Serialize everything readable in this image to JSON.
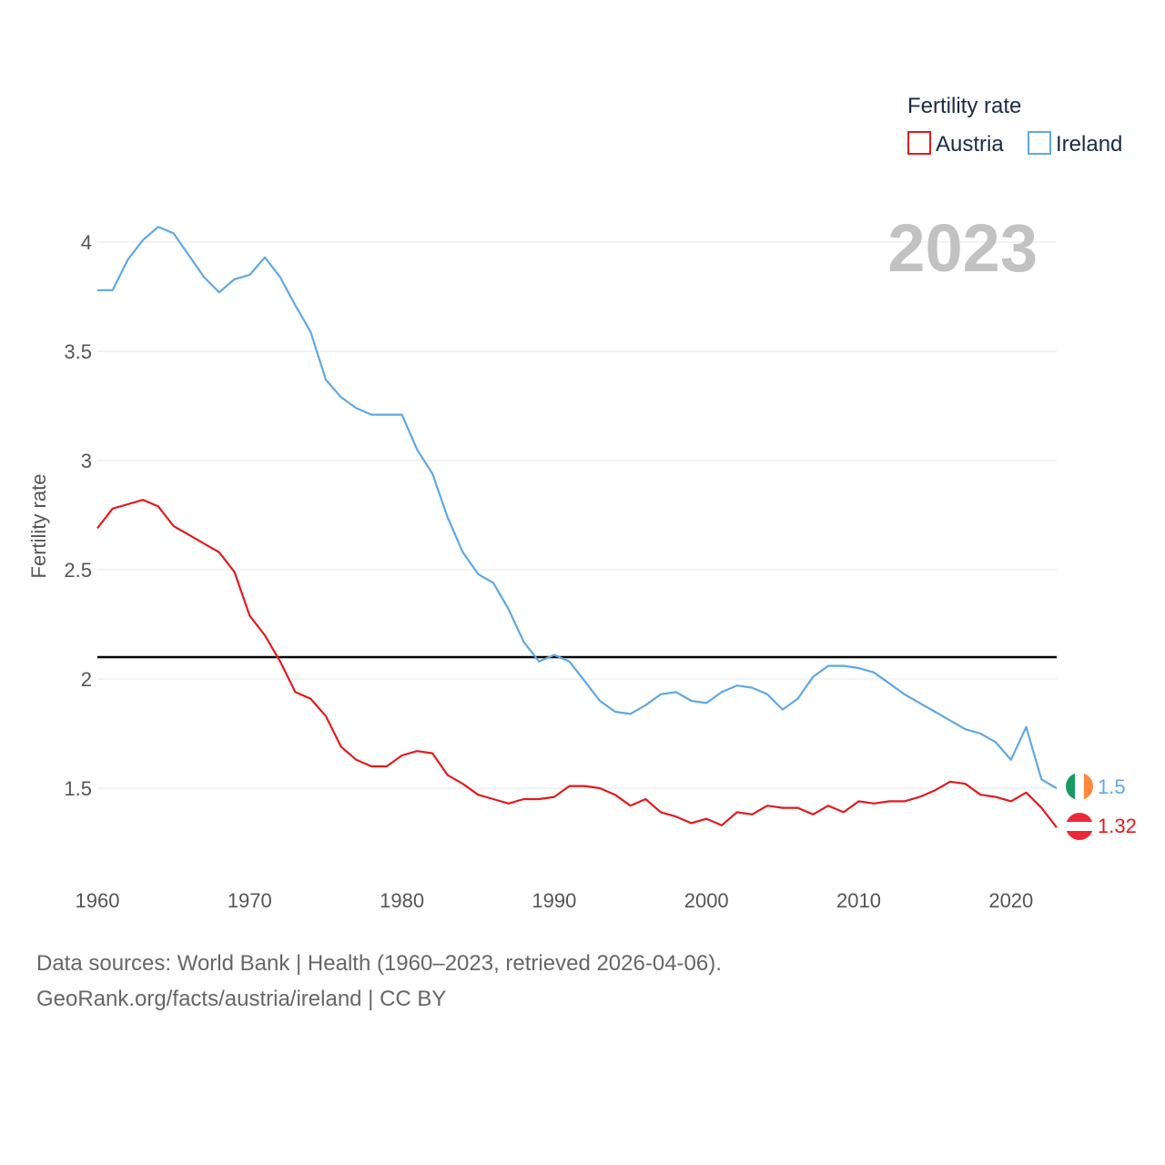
{
  "chart_data": {
    "type": "line",
    "title": "",
    "highlight_year": "2023",
    "ylabel": "Fertility rate",
    "xlabel": "",
    "xlim": [
      1960,
      2023
    ],
    "ylim": [
      1.15,
      4.2
    ],
    "x_ticks": [
      1960,
      1970,
      1980,
      1990,
      2000,
      2010,
      2020
    ],
    "y_ticks": [
      {
        "value": 1.5,
        "label": "1.5"
      },
      {
        "value": 2,
        "label": "2"
      },
      {
        "value": 2.5,
        "label": "2.5"
      },
      {
        "value": 3,
        "label": "3"
      },
      {
        "value": 3.5,
        "label": "3.5"
      },
      {
        "value": 4,
        "label": "4"
      }
    ],
    "reference_line": {
      "value": 2.1,
      "color": "#000000"
    },
    "legend": {
      "title": "Fertility rate",
      "position": "top-right"
    },
    "x": [
      1960,
      1961,
      1962,
      1963,
      1964,
      1965,
      1966,
      1967,
      1968,
      1969,
      1970,
      1971,
      1972,
      1973,
      1974,
      1975,
      1976,
      1977,
      1978,
      1979,
      1980,
      1981,
      1982,
      1983,
      1984,
      1985,
      1986,
      1987,
      1988,
      1989,
      1990,
      1991,
      1992,
      1993,
      1994,
      1995,
      1996,
      1997,
      1998,
      1999,
      2000,
      2001,
      2002,
      2003,
      2004,
      2005,
      2006,
      2007,
      2008,
      2009,
      2010,
      2011,
      2012,
      2013,
      2014,
      2015,
      2016,
      2017,
      2018,
      2019,
      2020,
      2021,
      2022,
      2023
    ],
    "series": [
      {
        "name": "Austria",
        "color": "#e31a1c",
        "end_label": "1.32",
        "values": [
          2.69,
          2.78,
          2.8,
          2.82,
          2.79,
          2.7,
          2.66,
          2.62,
          2.58,
          2.49,
          2.29,
          2.2,
          2.08,
          1.94,
          1.91,
          1.83,
          1.69,
          1.63,
          1.6,
          1.6,
          1.65,
          1.67,
          1.66,
          1.56,
          1.52,
          1.47,
          1.45,
          1.43,
          1.45,
          1.45,
          1.46,
          1.51,
          1.51,
          1.5,
          1.47,
          1.42,
          1.45,
          1.39,
          1.37,
          1.34,
          1.36,
          1.33,
          1.39,
          1.38,
          1.42,
          1.41,
          1.41,
          1.38,
          1.42,
          1.39,
          1.44,
          1.43,
          1.44,
          1.44,
          1.46,
          1.49,
          1.53,
          1.52,
          1.47,
          1.46,
          1.44,
          1.48,
          1.41,
          1.32
        ]
      },
      {
        "name": "Ireland",
        "color": "#5fa8e3",
        "end_label": "1.5",
        "values": [
          3.78,
          3.78,
          3.92,
          4.01,
          4.07,
          4.04,
          3.94,
          3.84,
          3.77,
          3.83,
          3.85,
          3.93,
          3.84,
          3.71,
          3.59,
          3.37,
          3.29,
          3.24,
          3.21,
          3.21,
          3.21,
          3.05,
          2.94,
          2.74,
          2.58,
          2.48,
          2.44,
          2.32,
          2.17,
          2.08,
          2.11,
          2.08,
          1.99,
          1.9,
          1.85,
          1.84,
          1.88,
          1.93,
          1.94,
          1.9,
          1.89,
          1.94,
          1.97,
          1.96,
          1.93,
          1.86,
          1.91,
          2.01,
          2.06,
          2.06,
          2.05,
          2.03,
          1.98,
          1.93,
          1.89,
          1.85,
          1.81,
          1.77,
          1.75,
          1.71,
          1.63,
          1.78,
          1.54,
          1.5
        ]
      }
    ]
  },
  "source": {
    "line1": "Data sources: World Bank | Health (1960–2023, retrieved 2026-04-06).",
    "line2": "GeoRank.org/facts/austria/ireland | CC BY"
  }
}
